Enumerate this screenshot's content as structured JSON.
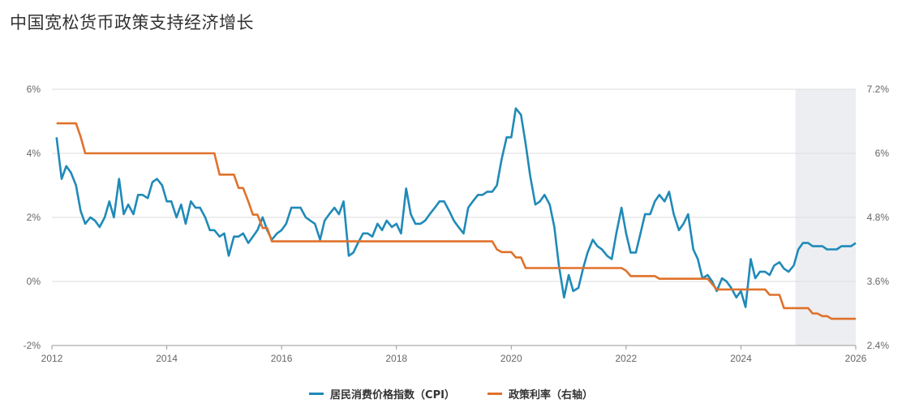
{
  "title": "中国宽松货币政策支持经济增长",
  "chart_data": {
    "type": "line",
    "title": "中国宽松货币政策支持经济增长",
    "x_range": [
      2012,
      2026
    ],
    "x_ticks": [
      "2012",
      "2014",
      "2016",
      "2018",
      "2020",
      "2022",
      "2024",
      "2026"
    ],
    "y_left": {
      "range": [
        -2,
        6
      ],
      "ticks": [
        "6%",
        "4%",
        "2%",
        "0%",
        "-2%"
      ]
    },
    "y_right": {
      "range": [
        2.4,
        7.2
      ],
      "ticks": [
        "7.2%",
        "6%",
        "4.8%",
        "3.6%",
        "2.4%"
      ]
    },
    "shaded_region": [
      2024.95,
      2026.15
    ],
    "grid": true,
    "legend_position": "bottom",
    "series": [
      {
        "name": "居民消费价格指数（CPI）",
        "axis": "left",
        "color": "#1f8ab8",
        "points": [
          [
            2012.08,
            4.5
          ],
          [
            2012.17,
            3.2
          ],
          [
            2012.25,
            3.6
          ],
          [
            2012.33,
            3.4
          ],
          [
            2012.42,
            3.0
          ],
          [
            2012.5,
            2.2
          ],
          [
            2012.58,
            1.8
          ],
          [
            2012.67,
            2.0
          ],
          [
            2012.75,
            1.9
          ],
          [
            2012.83,
            1.7
          ],
          [
            2012.92,
            2.0
          ],
          [
            2013.0,
            2.5
          ],
          [
            2013.08,
            2.0
          ],
          [
            2013.17,
            3.2
          ],
          [
            2013.25,
            2.1
          ],
          [
            2013.33,
            2.4
          ],
          [
            2013.42,
            2.1
          ],
          [
            2013.5,
            2.7
          ],
          [
            2013.58,
            2.7
          ],
          [
            2013.67,
            2.6
          ],
          [
            2013.75,
            3.1
          ],
          [
            2013.83,
            3.2
          ],
          [
            2013.92,
            3.0
          ],
          [
            2014.0,
            2.5
          ],
          [
            2014.08,
            2.5
          ],
          [
            2014.17,
            2.0
          ],
          [
            2014.25,
            2.4
          ],
          [
            2014.33,
            1.8
          ],
          [
            2014.42,
            2.5
          ],
          [
            2014.5,
            2.3
          ],
          [
            2014.58,
            2.3
          ],
          [
            2014.67,
            2.0
          ],
          [
            2014.75,
            1.6
          ],
          [
            2014.83,
            1.6
          ],
          [
            2014.92,
            1.4
          ],
          [
            2015.0,
            1.5
          ],
          [
            2015.08,
            0.8
          ],
          [
            2015.17,
            1.4
          ],
          [
            2015.25,
            1.4
          ],
          [
            2015.33,
            1.5
          ],
          [
            2015.42,
            1.2
          ],
          [
            2015.5,
            1.4
          ],
          [
            2015.58,
            1.6
          ],
          [
            2015.67,
            2.0
          ],
          [
            2015.75,
            1.6
          ],
          [
            2015.83,
            1.3
          ],
          [
            2015.92,
            1.5
          ],
          [
            2016.0,
            1.6
          ],
          [
            2016.08,
            1.8
          ],
          [
            2016.17,
            2.3
          ],
          [
            2016.25,
            2.3
          ],
          [
            2016.33,
            2.3
          ],
          [
            2016.42,
            2.0
          ],
          [
            2016.5,
            1.9
          ],
          [
            2016.58,
            1.8
          ],
          [
            2016.67,
            1.3
          ],
          [
            2016.75,
            1.9
          ],
          [
            2016.83,
            2.1
          ],
          [
            2016.92,
            2.3
          ],
          [
            2017.0,
            2.1
          ],
          [
            2017.08,
            2.5
          ],
          [
            2017.17,
            0.8
          ],
          [
            2017.25,
            0.9
          ],
          [
            2017.33,
            1.2
          ],
          [
            2017.42,
            1.5
          ],
          [
            2017.5,
            1.5
          ],
          [
            2017.58,
            1.4
          ],
          [
            2017.67,
            1.8
          ],
          [
            2017.75,
            1.6
          ],
          [
            2017.83,
            1.9
          ],
          [
            2017.92,
            1.7
          ],
          [
            2018.0,
            1.8
          ],
          [
            2018.08,
            1.5
          ],
          [
            2018.17,
            2.9
          ],
          [
            2018.25,
            2.1
          ],
          [
            2018.33,
            1.8
          ],
          [
            2018.42,
            1.8
          ],
          [
            2018.5,
            1.9
          ],
          [
            2018.58,
            2.1
          ],
          [
            2018.67,
            2.3
          ],
          [
            2018.75,
            2.5
          ],
          [
            2018.83,
            2.5
          ],
          [
            2018.92,
            2.2
          ],
          [
            2019.0,
            1.9
          ],
          [
            2019.08,
            1.7
          ],
          [
            2019.17,
            1.5
          ],
          [
            2019.25,
            2.3
          ],
          [
            2019.33,
            2.5
          ],
          [
            2019.42,
            2.7
          ],
          [
            2019.5,
            2.7
          ],
          [
            2019.58,
            2.8
          ],
          [
            2019.67,
            2.8
          ],
          [
            2019.75,
            3.0
          ],
          [
            2019.83,
            3.8
          ],
          [
            2019.92,
            4.5
          ],
          [
            2020.0,
            4.5
          ],
          [
            2020.08,
            5.4
          ],
          [
            2020.17,
            5.2
          ],
          [
            2020.25,
            4.3
          ],
          [
            2020.33,
            3.3
          ],
          [
            2020.42,
            2.4
          ],
          [
            2020.5,
            2.5
          ],
          [
            2020.58,
            2.7
          ],
          [
            2020.67,
            2.4
          ],
          [
            2020.75,
            1.7
          ],
          [
            2020.83,
            0.5
          ],
          [
            2020.92,
            -0.5
          ],
          [
            2021.0,
            0.2
          ],
          [
            2021.08,
            -0.3
          ],
          [
            2021.17,
            -0.2
          ],
          [
            2021.25,
            0.4
          ],
          [
            2021.33,
            0.9
          ],
          [
            2021.42,
            1.3
          ],
          [
            2021.5,
            1.1
          ],
          [
            2021.58,
            1.0
          ],
          [
            2021.67,
            0.8
          ],
          [
            2021.75,
            0.7
          ],
          [
            2021.83,
            1.5
          ],
          [
            2021.92,
            2.3
          ],
          [
            2022.0,
            1.5
          ],
          [
            2022.08,
            0.9
          ],
          [
            2022.17,
            0.9
          ],
          [
            2022.25,
            1.5
          ],
          [
            2022.33,
            2.1
          ],
          [
            2022.42,
            2.1
          ],
          [
            2022.5,
            2.5
          ],
          [
            2022.58,
            2.7
          ],
          [
            2022.67,
            2.5
          ],
          [
            2022.75,
            2.8
          ],
          [
            2022.83,
            2.1
          ],
          [
            2022.92,
            1.6
          ],
          [
            2023.0,
            1.8
          ],
          [
            2023.08,
            2.1
          ],
          [
            2023.17,
            1.0
          ],
          [
            2023.25,
            0.7
          ],
          [
            2023.33,
            0.1
          ],
          [
            2023.42,
            0.2
          ],
          [
            2023.5,
            0.0
          ],
          [
            2023.58,
            -0.3
          ],
          [
            2023.67,
            0.1
          ],
          [
            2023.75,
            0.0
          ],
          [
            2023.83,
            -0.2
          ],
          [
            2023.92,
            -0.5
          ],
          [
            2024.0,
            -0.3
          ],
          [
            2024.08,
            -0.8
          ],
          [
            2024.17,
            0.7
          ],
          [
            2024.25,
            0.1
          ],
          [
            2024.33,
            0.3
          ],
          [
            2024.42,
            0.3
          ],
          [
            2024.5,
            0.2
          ],
          [
            2024.58,
            0.5
          ],
          [
            2024.67,
            0.6
          ],
          [
            2024.75,
            0.4
          ],
          [
            2024.83,
            0.3
          ],
          [
            2024.92,
            0.5
          ],
          [
            2025.0,
            1.0
          ],
          [
            2025.08,
            1.2
          ],
          [
            2025.17,
            1.2
          ],
          [
            2025.25,
            1.1
          ],
          [
            2025.33,
            1.1
          ],
          [
            2025.42,
            1.1
          ],
          [
            2025.5,
            1.0
          ],
          [
            2025.58,
            1.0
          ],
          [
            2025.67,
            1.0
          ],
          [
            2025.75,
            1.1
          ],
          [
            2025.83,
            1.1
          ],
          [
            2025.92,
            1.1
          ],
          [
            2026.0,
            1.2
          ]
        ]
      },
      {
        "name": "政策利率（右轴）",
        "axis": "right",
        "color": "#e0712b",
        "points": [
          [
            2012.08,
            6.56
          ],
          [
            2012.42,
            6.56
          ],
          [
            2012.5,
            6.31
          ],
          [
            2012.58,
            6.0
          ],
          [
            2013.0,
            6.0
          ],
          [
            2014.0,
            6.0
          ],
          [
            2014.83,
            6.0
          ],
          [
            2014.92,
            5.6
          ],
          [
            2015.17,
            5.6
          ],
          [
            2015.25,
            5.35
          ],
          [
            2015.33,
            5.35
          ],
          [
            2015.42,
            5.1
          ],
          [
            2015.5,
            4.85
          ],
          [
            2015.58,
            4.85
          ],
          [
            2015.67,
            4.6
          ],
          [
            2015.75,
            4.6
          ],
          [
            2015.83,
            4.35
          ],
          [
            2016.0,
            4.35
          ],
          [
            2017.0,
            4.35
          ],
          [
            2018.0,
            4.35
          ],
          [
            2019.0,
            4.35
          ],
          [
            2019.67,
            4.35
          ],
          [
            2019.75,
            4.2
          ],
          [
            2019.83,
            4.15
          ],
          [
            2019.92,
            4.15
          ],
          [
            2020.0,
            4.15
          ],
          [
            2020.08,
            4.05
          ],
          [
            2020.17,
            4.05
          ],
          [
            2020.25,
            3.85
          ],
          [
            2020.5,
            3.85
          ],
          [
            2021.0,
            3.85
          ],
          [
            2021.5,
            3.85
          ],
          [
            2021.92,
            3.85
          ],
          [
            2022.0,
            3.8
          ],
          [
            2022.08,
            3.7
          ],
          [
            2022.5,
            3.7
          ],
          [
            2022.58,
            3.65
          ],
          [
            2022.67,
            3.65
          ],
          [
            2023.0,
            3.65
          ],
          [
            2023.42,
            3.65
          ],
          [
            2023.5,
            3.55
          ],
          [
            2023.58,
            3.45
          ],
          [
            2023.67,
            3.45
          ],
          [
            2024.0,
            3.45
          ],
          [
            2024.42,
            3.45
          ],
          [
            2024.5,
            3.35
          ],
          [
            2024.58,
            3.35
          ],
          [
            2024.67,
            3.35
          ],
          [
            2024.75,
            3.1
          ],
          [
            2024.92,
            3.1
          ],
          [
            2025.17,
            3.1
          ],
          [
            2025.25,
            3.0
          ],
          [
            2025.33,
            3.0
          ],
          [
            2025.42,
            2.95
          ],
          [
            2025.5,
            2.95
          ],
          [
            2025.58,
            2.9
          ],
          [
            2025.92,
            2.9
          ],
          [
            2026.0,
            2.9
          ]
        ]
      }
    ]
  }
}
